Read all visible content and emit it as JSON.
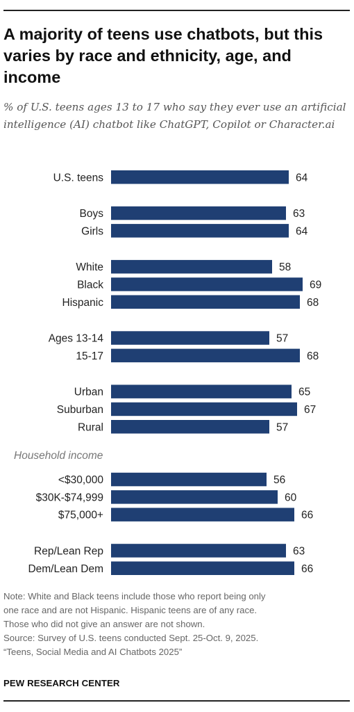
{
  "chart_data": {
    "type": "bar",
    "orientation": "horizontal",
    "title": "A majority of teens use chatbots, but this varies by race and ethnicity, age, and income",
    "subtitle": "% of U.S. teens ages 13 to 17 who say they ever use an artificial intelligence (AI) chatbot like ChatGPT, Copilot or Character.ai",
    "bar_color": "#1f3f73",
    "xlim": [
      0,
      100
    ],
    "groups": [
      {
        "label": "",
        "items": [
          {
            "category": "U.S. teens",
            "value": 64
          }
        ]
      },
      {
        "label": "",
        "items": [
          {
            "category": "Boys",
            "value": 63
          },
          {
            "category": "Girls",
            "value": 64
          }
        ]
      },
      {
        "label": "",
        "items": [
          {
            "category": "White",
            "value": 58
          },
          {
            "category": "Black",
            "value": 69
          },
          {
            "category": "Hispanic",
            "value": 68
          }
        ]
      },
      {
        "label": "",
        "items": [
          {
            "category": "Ages 13-14",
            "value": 57
          },
          {
            "category": "15-17",
            "value": 68
          }
        ]
      },
      {
        "label": "",
        "items": [
          {
            "category": "Urban",
            "value": 65
          },
          {
            "category": "Suburban",
            "value": 67
          },
          {
            "category": "Rural",
            "value": 57
          }
        ]
      },
      {
        "label": "Household income",
        "items": [
          {
            "category": "<$30,000",
            "value": 56
          },
          {
            "category": "$30K-$74,999",
            "value": 60
          },
          {
            "category": "$75,000+",
            "value": 66
          }
        ]
      },
      {
        "label": "",
        "items": [
          {
            "category": "Rep/Lean Rep",
            "value": 63
          },
          {
            "category": "Dem/Lean Dem",
            "value": 66
          }
        ]
      }
    ]
  },
  "notes": {
    "lines": [
      "Note: White and Black teens include those who report being only",
      "one race and are not Hispanic. Hispanic teens are of any race.",
      "Those who did not give an answer are not shown.",
      "Source: Survey of U.S. teens conducted Sept. 25-Oct. 9, 2025.",
      "“Teens, Social Media and AI Chatbots 2025”"
    ]
  },
  "brand": "PEW RESEARCH CENTER"
}
